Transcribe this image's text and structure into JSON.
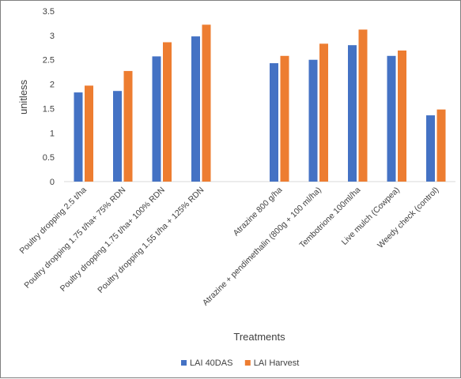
{
  "chart_data": {
    "type": "bar",
    "title": "",
    "xlabel": "Treatments",
    "ylabel": "unitless",
    "ylim": [
      0,
      3.5
    ],
    "yticks": [
      "0",
      "0.5",
      "1",
      "1.5",
      "2",
      "2.5",
      "3",
      "3.5"
    ],
    "grid": false,
    "legend_position": "bottom",
    "categories": [
      "Poultry dropping 2.5 t/ha",
      "Poultry dropping 1.75 t/ha+ 75% RDN",
      "Poultry dropping 1.75 t/ha+ 100% RDN",
      "Poultry dropping 1.55 t/ha + 125% RDN",
      "",
      "Atrazine 800 g/ha",
      "Atrazine + pendimethalin (800g + 100 ml/ha)",
      "Tembotrione 100ml/ha",
      "Live mulch (Cowpea)",
      "Weedy check (control)"
    ],
    "series": [
      {
        "name": "LAI 40DAS",
        "color": "#4472c4",
        "values": [
          1.83,
          1.86,
          2.57,
          2.98,
          null,
          2.43,
          2.5,
          2.8,
          2.58,
          1.36
        ]
      },
      {
        "name": "LAI Harvest",
        "color": "#ed7d31",
        "values": [
          1.97,
          2.27,
          2.86,
          3.22,
          null,
          2.58,
          2.83,
          3.12,
          2.69,
          1.48
        ]
      }
    ]
  }
}
